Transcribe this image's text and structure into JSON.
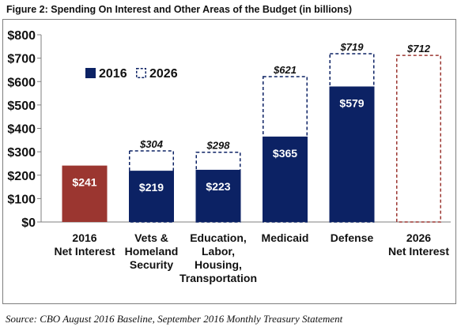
{
  "figure": {
    "title": "Figure 2: Spending On Interest and Other Areas of the Budget (in billions)",
    "source": "Source: CBO August 2016 Baseline, September 2016 Monthly Treasury Statement"
  },
  "colors": {
    "navy": "#0c2264",
    "red": "#9b3630",
    "text": "#111111",
    "axis": "#7f7f7f"
  },
  "chart_data": {
    "type": "bar",
    "title": "Figure 2: Spending On Interest and Other Areas of the Budget (in billions)",
    "xlabel": "",
    "ylabel": "",
    "ylim": [
      0,
      800
    ],
    "yticks": [
      0,
      100,
      200,
      300,
      400,
      500,
      600,
      700,
      800
    ],
    "ytick_labels": [
      "$0",
      "$100",
      "$200",
      "$300",
      "$400",
      "$500",
      "$600",
      "$700",
      "$800"
    ],
    "grid": false,
    "legend": {
      "position": "top-left",
      "entries": [
        "2016",
        "2026"
      ]
    },
    "categories": [
      [
        "2016",
        "Net Interest"
      ],
      [
        "Vets &",
        "Homeland",
        "Security"
      ],
      [
        "Education,",
        "Labor,",
        "Housing,",
        "Transportation"
      ],
      [
        "Medicaid"
      ],
      [
        "Defense"
      ],
      [
        "2026",
        "Net Interest"
      ]
    ],
    "series": [
      {
        "name": "2016",
        "style": "solid",
        "values": [
          241,
          219,
          223,
          365,
          579,
          null
        ],
        "labels": [
          "$241",
          "$219",
          "$223",
          "$365",
          "$579",
          null
        ]
      },
      {
        "name": "2026",
        "style": "dashed",
        "values": [
          null,
          304,
          298,
          621,
          719,
          712
        ],
        "labels": [
          null,
          "$304",
          "$298",
          "$621",
          "$719",
          "$712"
        ]
      }
    ],
    "bar_colors": [
      "#9b3630",
      "#0c2264",
      "#0c2264",
      "#0c2264",
      "#0c2264",
      "#9b3630"
    ]
  }
}
